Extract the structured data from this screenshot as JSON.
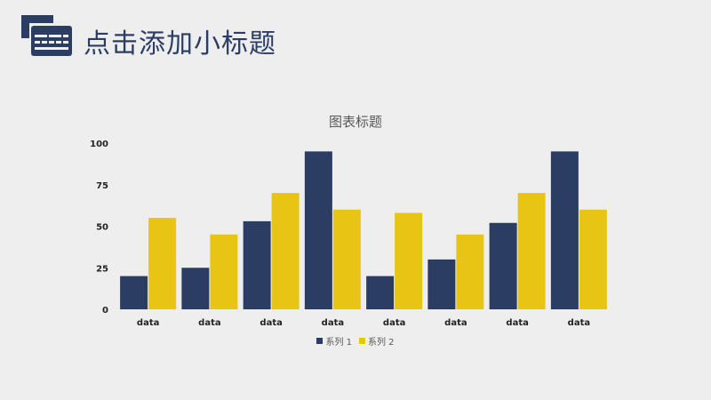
{
  "slide": {
    "title": "点击添加小标题",
    "logo_icon": "credit-card-icon",
    "accent_color": "#2b3d63"
  },
  "chart_data": {
    "type": "bar",
    "title": "图表标题",
    "xlabel": "",
    "ylabel": "",
    "categories": [
      "data",
      "data",
      "data",
      "data",
      "data",
      "data",
      "data",
      "data"
    ],
    "series": [
      {
        "name": "系列 1",
        "color": "#2b3d63",
        "values": [
          20,
          25,
          53,
          95,
          20,
          30,
          52,
          95
        ]
      },
      {
        "name": "系列 2",
        "color": "#e8c414",
        "values": [
          55,
          45,
          70,
          60,
          58,
          45,
          70,
          60
        ]
      }
    ],
    "ylim": [
      0,
      100
    ],
    "yticks": [
      0,
      25,
      50,
      75,
      100
    ],
    "grid": false,
    "legend_position": "bottom"
  }
}
